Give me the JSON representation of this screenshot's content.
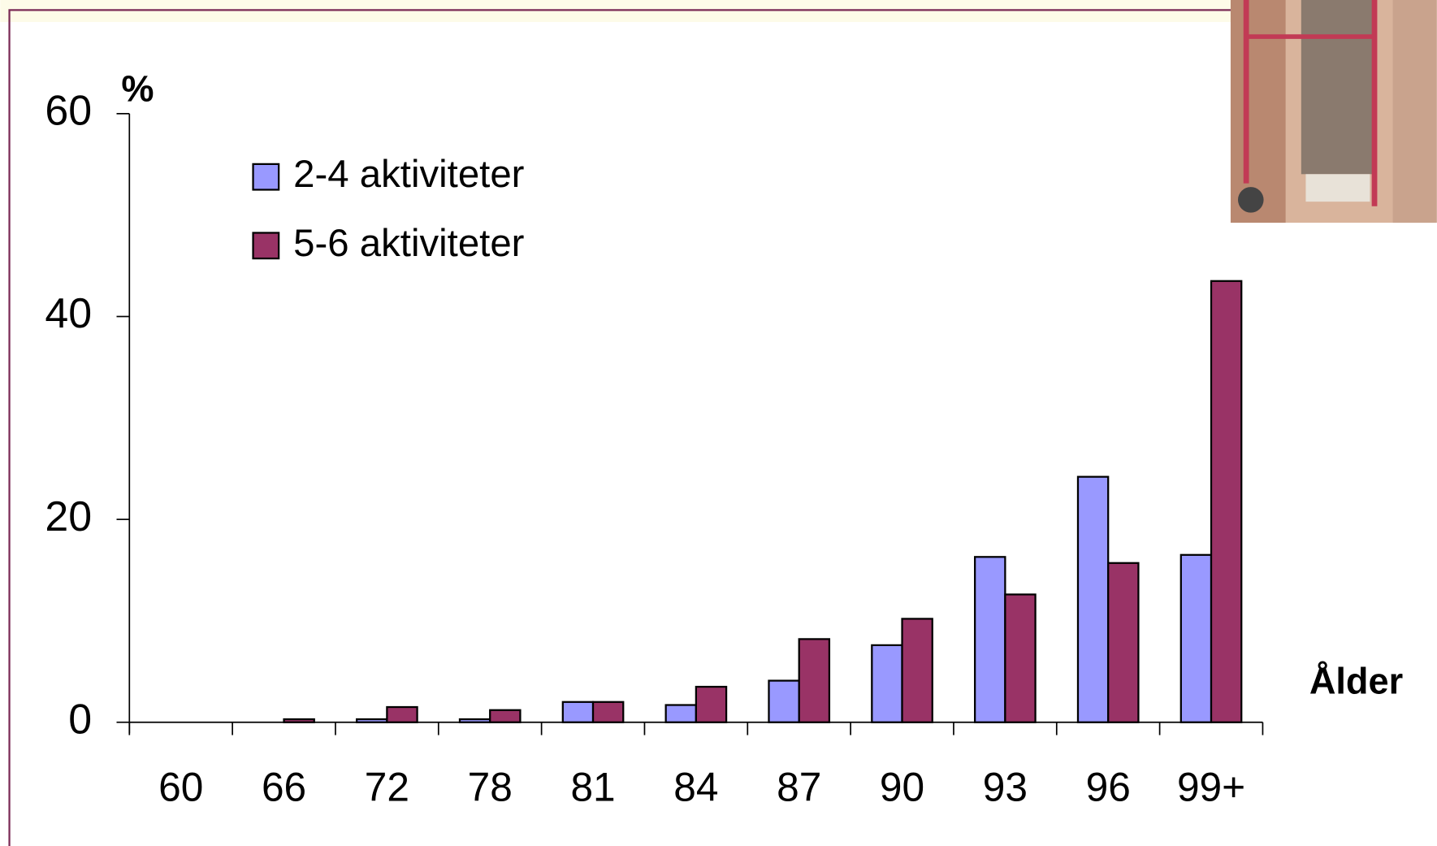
{
  "chart_data": {
    "type": "bar",
    "y_label": "%",
    "x_label": "Ålder",
    "categories": [
      "60",
      "66",
      "72",
      "78",
      "81",
      "84",
      "87",
      "90",
      "93",
      "96",
      "99+"
    ],
    "series": [
      {
        "name": "2-4 aktiviteter",
        "color": "#9999ff",
        "values": [
          0,
          0,
          0.3,
          0.3,
          2.0,
          1.7,
          4.1,
          7.6,
          16.3,
          24.2,
          16.5
        ]
      },
      {
        "name": "5-6 aktiviteter",
        "color": "#993366",
        "values": [
          0,
          0.3,
          1.5,
          1.2,
          2.0,
          3.5,
          8.2,
          10.2,
          12.6,
          15.7,
          43.5
        ]
      }
    ],
    "ylim": [
      0,
      60
    ],
    "yticks": [
      0,
      20,
      40,
      60
    ],
    "grid": false
  }
}
